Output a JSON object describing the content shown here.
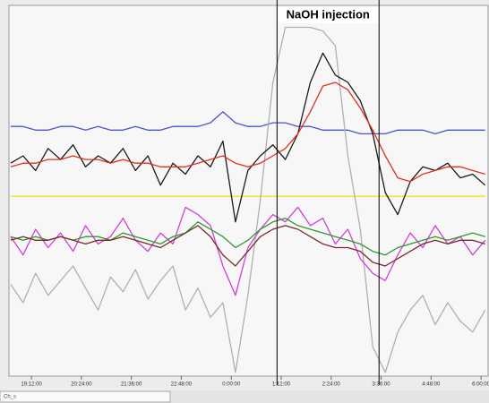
{
  "chart_data": {
    "type": "line",
    "annotation": "NaOH injection",
    "vlines": [
      25.1,
      27.55
    ],
    "status_label": "Ch_s",
    "xlim": [
      18.66,
      30.17
    ],
    "ylim": [
      0,
      100
    ],
    "xticks": [
      {
        "value": 19.2,
        "label": "19:12:00"
      },
      {
        "value": 20.4,
        "label": "20:24:00"
      },
      {
        "value": 21.6,
        "label": "21:36:00"
      },
      {
        "value": 22.8,
        "label": "22:48:00"
      },
      {
        "value": 24,
        "label": "0:00:00"
      },
      {
        "value": 25.2,
        "label": "1:12:00"
      },
      {
        "value": 26.4,
        "label": "2:24:00"
      },
      {
        "value": 27.6,
        "label": "3:36:00"
      },
      {
        "value": 28.8,
        "label": "4:48:00"
      },
      {
        "value": 30,
        "label": "6:00:00"
      }
    ],
    "x": [
      18.7,
      19.0,
      19.3,
      19.6,
      19.9,
      20.2,
      20.5,
      20.8,
      21.1,
      21.4,
      21.7,
      22.0,
      22.3,
      22.6,
      22.9,
      23.2,
      23.5,
      23.8,
      24.1,
      24.4,
      24.7,
      25.0,
      25.3,
      25.6,
      25.9,
      26.2,
      26.5,
      26.8,
      27.1,
      27.4,
      27.7,
      28.0,
      28.3,
      28.6,
      28.9,
      29.2,
      29.5,
      29.8,
      30.1
    ],
    "series": [
      {
        "color": "#4a55c8",
        "values": [
          68,
          68,
          67,
          67,
          68,
          68,
          67,
          68,
          67,
          67,
          68,
          67,
          67,
          68,
          68,
          68,
          69,
          72,
          69,
          68,
          68,
          69,
          69,
          68,
          68,
          67,
          67,
          67,
          66,
          66,
          66,
          67,
          67,
          67,
          66,
          67,
          67,
          67,
          67
        ]
      },
      {
        "color": "#f0e000",
        "values": [
          49,
          49,
          49,
          49,
          49,
          49,
          49,
          49,
          49,
          49,
          49,
          49,
          49,
          49,
          49,
          49,
          49,
          49,
          49,
          49,
          49,
          49,
          49,
          49,
          49,
          49,
          49,
          49,
          49,
          49,
          49,
          49,
          49,
          49,
          49,
          49,
          49,
          49,
          49
        ]
      },
      {
        "color": "#b0b0b0",
        "values": [
          25,
          20,
          28,
          22,
          26,
          30,
          24,
          18,
          27,
          23,
          29,
          21,
          26,
          30,
          18,
          24,
          16,
          20,
          1,
          22,
          48,
          80,
          95,
          95,
          95,
          94,
          90,
          60,
          40,
          8,
          1,
          12,
          18,
          22,
          14,
          20,
          15,
          12,
          18
        ]
      },
      {
        "color": "#d040d8",
        "values": [
          38,
          33,
          40,
          35,
          39,
          34,
          41,
          36,
          38,
          43,
          37,
          34,
          39,
          36,
          46,
          44,
          41,
          30,
          22,
          35,
          40,
          44,
          42,
          46,
          41,
          43,
          36,
          40,
          32,
          28,
          26,
          33,
          39,
          35,
          41,
          36,
          38,
          33,
          37
        ]
      },
      {
        "color": "#2a9a2a",
        "values": [
          38,
          37,
          38,
          37,
          38,
          37,
          38,
          38,
          37,
          39,
          38,
          37,
          36,
          38,
          39,
          42,
          40,
          38,
          35,
          37,
          40,
          42,
          43,
          41,
          40,
          39,
          38,
          37,
          36,
          34,
          33,
          35,
          36,
          37,
          38,
          37,
          38,
          39,
          38
        ]
      },
      {
        "color": "#7a2a2a",
        "values": [
          37,
          38,
          37,
          37,
          38,
          37,
          36,
          37,
          37,
          38,
          37,
          36,
          35,
          37,
          39,
          41,
          38,
          33,
          30,
          34,
          38,
          40,
          41,
          40,
          38,
          36,
          35,
          35,
          34,
          31,
          30,
          32,
          34,
          36,
          37,
          36,
          37,
          37,
          36
        ]
      },
      {
        "color": "#1a1a1a",
        "values": [
          58,
          60,
          56,
          62,
          59,
          63,
          57,
          60,
          58,
          62,
          56,
          60,
          52,
          58,
          55,
          60,
          57,
          64,
          42,
          56,
          60,
          63,
          59,
          66,
          80,
          88,
          82,
          80,
          75,
          66,
          50,
          44,
          53,
          57,
          56,
          58,
          54,
          55,
          52
        ]
      },
      {
        "color": "#e03020",
        "values": [
          57,
          58,
          58,
          59,
          59,
          60,
          59,
          59,
          58,
          59,
          58,
          58,
          57,
          57,
          57,
          58,
          59,
          60,
          58,
          57,
          58,
          60,
          62,
          66,
          72,
          79,
          80,
          78,
          73,
          67,
          60,
          54,
          53,
          55,
          56,
          57,
          57,
          56,
          55
        ]
      }
    ]
  }
}
